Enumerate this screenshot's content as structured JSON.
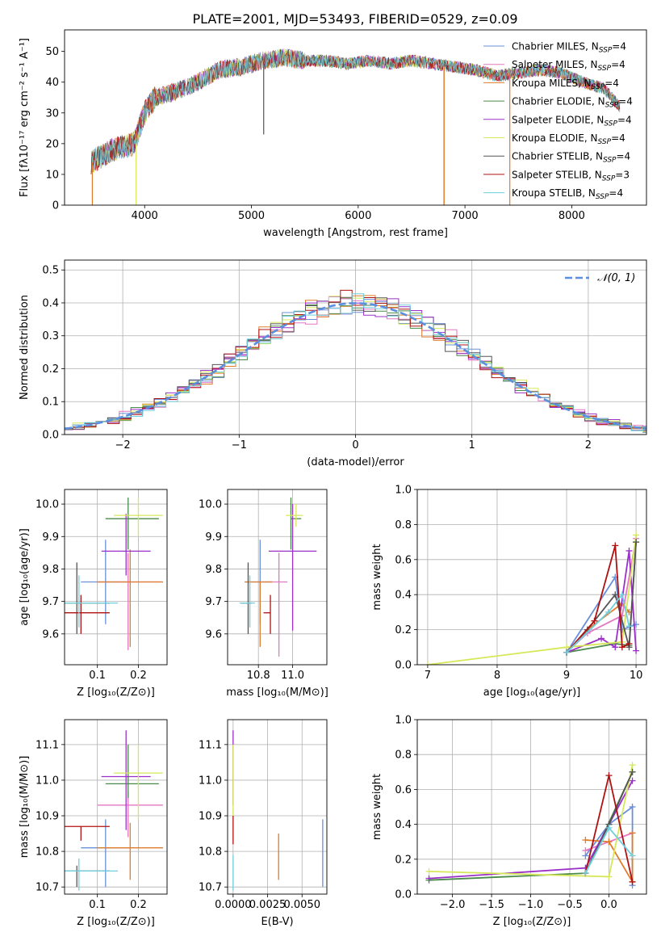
{
  "figure_title": "PLATE=2001, MJD=53493, FIBERID=0529, z=0.09",
  "colors": {
    "chabrier_miles": "#6a8fd8",
    "salpeter_miles": "#e377c2",
    "kroupa_miles": "#e07b2a",
    "chabrier_elodie": "#4a8a4a",
    "salpeter_elodie": "#9b30c8",
    "kroupa_elodie": "#d6e85a",
    "chabrier_stelib": "#555555",
    "salpeter_stelib": "#b01010",
    "kroupa_stelib": "#6fcfdc",
    "normal": "#5b8ede",
    "grid": "#b0b0b0"
  },
  "chart_data": [
    {
      "id": "spectrum",
      "type": "line",
      "title": "PLATE=2001, MJD=53493, FIBERID=0529, z=0.09",
      "xlabel": "wavelength [Angstrom, rest frame]",
      "ylabel": "Flux [fλ10⁻¹⁷ erg cm⁻² s⁻¹ A⁻¹]",
      "xlim": [
        3250,
        8700
      ],
      "ylim": [
        0,
        57
      ],
      "xticks": [
        4000,
        5000,
        6000,
        7000,
        8000
      ],
      "yticks": [
        0,
        10,
        20,
        30,
        40,
        50
      ],
      "grid": false,
      "legend_position": "top-right",
      "series": [
        {
          "name": "Chabrier MILES, N_SSP=4",
          "key": "chabrier_miles"
        },
        {
          "name": "Salpeter MILES, N_SSP=4",
          "key": "salpeter_miles"
        },
        {
          "name": "Kroupa MILES, N_SSP=4",
          "key": "kroupa_miles"
        },
        {
          "name": "Chabrier ELODIE, N_SSP=4",
          "key": "chabrier_elodie"
        },
        {
          "name": "Salpeter ELODIE, N_SSP=4",
          "key": "salpeter_elodie"
        },
        {
          "name": "Kroupa ELODIE, N_SSP=4",
          "key": "kroupa_elodie"
        },
        {
          "name": "Chabrier STELIB, N_SSP=4",
          "key": "chabrier_stelib"
        },
        {
          "name": "Salpeter STELIB, N_SSP=3",
          "key": "salpeter_stelib"
        },
        {
          "name": "Kroupa STELIB, N_SSP=4",
          "key": "kroupa_stelib"
        }
      ],
      "continuum": {
        "x": [
          3500,
          3700,
          3900,
          4000,
          4100,
          4300,
          4500,
          4700,
          4900,
          5100,
          5300,
          5500,
          5700,
          5900,
          6100,
          6300,
          6500,
          6700,
          6900,
          7100,
          7300,
          7500,
          7700,
          7900,
          8100,
          8300,
          8450
        ],
        "y": [
          14,
          18,
          20,
          30,
          35,
          37,
          40,
          44,
          45,
          47,
          48,
          47,
          47,
          46,
          47,
          46,
          47,
          46,
          45,
          44,
          42,
          43,
          44,
          43,
          40,
          38,
          32
        ]
      },
      "spikes": [
        {
          "x": 3510,
          "y_from": 14,
          "y_to": 0,
          "key": "kroupa_miles"
        },
        {
          "x": 3920,
          "y_from": 20,
          "y_to": 0,
          "key": "kroupa_elodie"
        },
        {
          "x": 5115,
          "y_from": 45,
          "y_to": 23,
          "key": "chabrier_stelib"
        },
        {
          "x": 6800,
          "y_from": 45,
          "y_to": 0,
          "key": "kroupa_elodie"
        },
        {
          "x": 6805,
          "y_from": 45,
          "y_to": 0,
          "key": "kroupa_miles"
        },
        {
          "x": 7420,
          "y_from": 43,
          "y_to": 0,
          "key": "kroupa_miles"
        }
      ]
    },
    {
      "id": "residuals",
      "type": "line",
      "xlabel": "(data-model)/error",
      "ylabel": "Normed distribution",
      "xlim": [
        -2.5,
        2.5
      ],
      "ylim": [
        0,
        0.53
      ],
      "xticks": [
        -2,
        -1,
        0,
        1,
        2
      ],
      "yticks": [
        0.0,
        0.1,
        0.2,
        0.3,
        0.4,
        0.5
      ],
      "grid": true,
      "legend_position": "top-right",
      "normal_label": "𝒩(0, 1)"
    },
    {
      "id": "age_vs_Z",
      "type": "scatter",
      "xlabel": "Z [log₁₀(Z/Z⊙)]",
      "ylabel": "age  [log₁₀(age/yr)]",
      "xlim": [
        0.02,
        0.27
      ],
      "ylim": [
        9.505,
        10.045
      ],
      "xticks": [
        0.1,
        0.2
      ],
      "yticks": [
        9.6,
        9.7,
        9.8,
        9.9,
        10.0
      ],
      "grid": true,
      "points": [
        {
          "key": "chabrier_miles",
          "x": 0.12,
          "y": 9.76,
          "xerr": [
            0.06,
            0.18
          ],
          "yerr": [
            9.63,
            9.89
          ]
        },
        {
          "key": "salpeter_miles",
          "x": 0.175,
          "y": 9.76,
          "xerr": [
            0.1,
            0.26
          ],
          "yerr": [
            9.55,
            9.85
          ]
        },
        {
          "key": "kroupa_miles",
          "x": 0.18,
          "y": 9.76,
          "xerr": [
            0.1,
            0.26
          ],
          "yerr": [
            9.56,
            9.86
          ]
        },
        {
          "key": "chabrier_elodie",
          "x": 0.175,
          "y": 9.955,
          "xerr": [
            0.12,
            0.25
          ],
          "yerr": [
            9.86,
            10.02
          ]
        },
        {
          "key": "salpeter_elodie",
          "x": 0.17,
          "y": 9.855,
          "xerr": [
            0.11,
            0.23
          ],
          "yerr": [
            9.78,
            9.97
          ]
        },
        {
          "key": "kroupa_elodie",
          "x": 0.2,
          "y": 9.965,
          "xerr": [
            0.14,
            0.26
          ],
          "yerr": [
            9.9,
            10.02
          ]
        },
        {
          "key": "chabrier_stelib",
          "x": 0.05,
          "y": 9.695,
          "xerr": [
            0.0,
            0.13
          ],
          "yerr": [
            9.6,
            9.82
          ]
        },
        {
          "key": "salpeter_stelib",
          "x": 0.06,
          "y": 9.665,
          "xerr": [
            0.0,
            0.13
          ],
          "yerr": [
            9.6,
            9.72
          ]
        },
        {
          "key": "kroupa_stelib",
          "x": 0.055,
          "y": 9.695,
          "xerr": [
            0.0,
            0.15
          ],
          "yerr": [
            9.62,
            9.78
          ]
        }
      ]
    },
    {
      "id": "age_vs_mass",
      "type": "scatter",
      "xlabel": "mass [log₁₀(M/M⊙)]",
      "ylabel": "",
      "xlim": [
        10.62,
        11.2
      ],
      "ylim": [
        9.505,
        10.045
      ],
      "xticks": [
        10.8,
        11.0
      ],
      "yticks": [
        9.6,
        9.7,
        9.8,
        9.9,
        10.0
      ],
      "grid": true,
      "points": [
        {
          "key": "chabrier_miles",
          "x": 10.81,
          "y": 9.76,
          "xerr": [
            10.72,
            10.88
          ],
          "yerr": [
            9.63,
            9.89
          ]
        },
        {
          "key": "salpeter_miles",
          "x": 10.92,
          "y": 9.76,
          "xerr": [
            10.84,
            10.97
          ],
          "yerr": [
            9.53,
            9.85
          ]
        },
        {
          "key": "kroupa_miles",
          "x": 10.81,
          "y": 9.76,
          "xerr": [
            10.72,
            10.88
          ],
          "yerr": [
            9.56,
            9.76
          ]
        },
        {
          "key": "chabrier_elodie",
          "x": 10.99,
          "y": 9.955,
          "xerr": [
            10.99,
            11.05
          ],
          "yerr": [
            9.86,
            10.02
          ]
        },
        {
          "key": "salpeter_elodie",
          "x": 11.0,
          "y": 9.855,
          "xerr": [
            10.86,
            11.14
          ],
          "yerr": [
            9.61,
            10.0
          ]
        },
        {
          "key": "kroupa_elodie",
          "x": 11.02,
          "y": 9.965,
          "xerr": [
            10.96,
            11.06
          ],
          "yerr": [
            9.93,
            10.0
          ]
        },
        {
          "key": "chabrier_stelib",
          "x": 10.74,
          "y": 9.695,
          "xerr": [
            10.7,
            10.76
          ],
          "yerr": [
            9.6,
            9.82
          ]
        },
        {
          "key": "salpeter_stelib",
          "x": 10.87,
          "y": 9.665,
          "xerr": [
            10.83,
            10.87
          ],
          "yerr": [
            9.6,
            9.72
          ]
        },
        {
          "key": "kroupa_stelib",
          "x": 10.75,
          "y": 9.695,
          "xerr": [
            10.69,
            10.78
          ],
          "yerr": [
            9.62,
            9.78
          ]
        }
      ]
    },
    {
      "id": "weight_vs_age",
      "type": "line",
      "xlabel": "age  [log₁₀(age/yr)]",
      "ylabel": "mass weight",
      "xlim": [
        6.85,
        10.15
      ],
      "ylim": [
        0,
        1
      ],
      "xticks": [
        7,
        8,
        9,
        10
      ],
      "yticks": [
        0.0,
        0.2,
        0.4,
        0.6,
        0.8,
        1.0
      ],
      "grid": true,
      "series": [
        {
          "key": "chabrier_miles",
          "x": [
            9.0,
            9.7,
            9.8,
            10.0
          ],
          "y": [
            0.07,
            0.5,
            0.2,
            0.23
          ]
        },
        {
          "key": "salpeter_miles",
          "x": [
            9.0,
            9.3,
            9.8,
            10.0
          ],
          "y": [
            0.07,
            0.18,
            0.28,
            0.72
          ]
        },
        {
          "key": "kroupa_miles",
          "x": [
            9.0,
            9.3,
            9.8,
            9.9
          ],
          "y": [
            0.07,
            0.2,
            0.35,
            0.3
          ]
        },
        {
          "key": "chabrier_elodie",
          "x": [
            9.0,
            9.7,
            9.9,
            10.0
          ],
          "y": [
            0.07,
            0.12,
            0.11,
            0.7
          ]
        },
        {
          "key": "salpeter_elodie",
          "x": [
            9.0,
            9.5,
            9.7,
            9.9,
            10.0
          ],
          "y": [
            0.07,
            0.15,
            0.1,
            0.65,
            0.08
          ]
        },
        {
          "key": "kroupa_elodie",
          "x": [
            7.0,
            9.0,
            9.8,
            10.0
          ],
          "y": [
            0.0,
            0.1,
            0.13,
            0.74
          ]
        },
        {
          "key": "chabrier_stelib",
          "x": [
            9.0,
            9.3,
            9.7,
            9.9,
            10.0
          ],
          "y": [
            0.07,
            0.2,
            0.4,
            0.1,
            0.7
          ]
        },
        {
          "key": "salpeter_stelib",
          "x": [
            9.0,
            9.4,
            9.7,
            9.8,
            9.9
          ],
          "y": [
            0.07,
            0.25,
            0.68,
            0.1,
            0.12
          ]
        },
        {
          "key": "kroupa_stelib",
          "x": [
            9.0,
            9.6,
            9.8,
            9.9
          ],
          "y": [
            0.07,
            0.3,
            0.4,
            0.22
          ]
        }
      ]
    },
    {
      "id": "mass_vs_Z",
      "type": "scatter",
      "xlabel": "Z [log₁₀(Z/Z⊙)]",
      "ylabel": "mass [log₁₀(M/M⊙)]",
      "xlim": [
        0.02,
        0.27
      ],
      "ylim": [
        10.68,
        11.17
      ],
      "xticks": [
        0.1,
        0.2
      ],
      "yticks": [
        10.7,
        10.8,
        10.9,
        11.0,
        11.1
      ],
      "grid": true,
      "points": [
        {
          "key": "chabrier_miles",
          "x": 0.12,
          "y": 10.81,
          "xerr": [
            0.06,
            0.18
          ],
          "yerr": [
            10.7,
            10.89
          ]
        },
        {
          "key": "salpeter_miles",
          "x": 0.175,
          "y": 10.93,
          "xerr": [
            0.1,
            0.26
          ],
          "yerr": [
            10.84,
            10.97
          ]
        },
        {
          "key": "kroupa_miles",
          "x": 0.18,
          "y": 10.81,
          "xerr": [
            0.1,
            0.26
          ],
          "yerr": [
            10.72,
            10.88
          ]
        },
        {
          "key": "chabrier_elodie",
          "x": 0.175,
          "y": 10.99,
          "xerr": [
            0.12,
            0.25
          ],
          "yerr": [
            10.95,
            11.1
          ]
        },
        {
          "key": "salpeter_elodie",
          "x": 0.17,
          "y": 11.01,
          "xerr": [
            0.11,
            0.23
          ],
          "yerr": [
            10.86,
            11.14
          ]
        },
        {
          "key": "kroupa_elodie",
          "x": 0.2,
          "y": 11.02,
          "xerr": [
            0.14,
            0.26
          ],
          "yerr": [
            10.89,
            11.1
          ]
        },
        {
          "key": "chabrier_stelib",
          "x": 0.05,
          "y": 10.745,
          "xerr": [
            0.0,
            0.13
          ],
          "yerr": [
            10.7,
            10.76
          ]
        },
        {
          "key": "salpeter_stelib",
          "x": 0.06,
          "y": 10.87,
          "xerr": [
            0.0,
            0.13
          ],
          "yerr": [
            10.83,
            10.87
          ]
        },
        {
          "key": "kroupa_stelib",
          "x": 0.055,
          "y": 10.745,
          "xerr": [
            0.0,
            0.15
          ],
          "yerr": [
            10.69,
            10.78
          ]
        }
      ]
    },
    {
      "id": "mass_vs_ebv",
      "type": "scatter",
      "xlabel": "E(B-V)",
      "ylabel": "",
      "xlim": [
        -0.0004,
        0.0068
      ],
      "ylim": [
        10.68,
        11.17
      ],
      "xticks": [
        0.0,
        0.0025,
        0.005
      ],
      "xticklabels": [
        "0.0000",
        "0.0025",
        "0.0050"
      ],
      "yticks": [
        10.7,
        10.8,
        10.9,
        11.0,
        11.1
      ],
      "grid": true,
      "points": [
        {
          "key": "chabrier_miles",
          "x": 0.0065,
          "y": 10.81,
          "yerr": [
            10.7,
            10.89
          ]
        },
        {
          "key": "kroupa_miles",
          "x": 0.0033,
          "y": 10.81,
          "yerr": [
            10.72,
            10.85
          ]
        },
        {
          "key": "salpeter_elodie",
          "x": 0.0,
          "y": 11.05,
          "yerr": [
            10.93,
            11.14
          ]
        },
        {
          "key": "kroupa_elodie",
          "x": 0.0,
          "y": 11.0,
          "yerr": [
            10.9,
            11.1
          ]
        },
        {
          "key": "salpeter_stelib",
          "x": 0.0,
          "y": 10.87,
          "yerr": [
            10.82,
            10.9
          ]
        },
        {
          "key": "kroupa_stelib",
          "x": 0.0,
          "y": 10.745,
          "yerr": [
            10.69,
            10.79
          ]
        }
      ]
    },
    {
      "id": "weight_vs_Z",
      "type": "line",
      "xlabel": "Z [log₁₀(Z/Z⊙)]",
      "ylabel": "mass weight",
      "xlim": [
        -2.45,
        0.48
      ],
      "ylim": [
        0,
        1
      ],
      "xticks": [
        -2.0,
        -1.5,
        -1.0,
        -0.5,
        0.0
      ],
      "yticks": [
        0.0,
        0.2,
        0.4,
        0.6,
        0.8,
        1.0
      ],
      "grid": true,
      "series": [
        {
          "key": "chabrier_miles",
          "x": [
            -0.3,
            0.0,
            0.3,
            0.3
          ],
          "y": [
            0.22,
            0.4,
            0.5,
            0.05
          ]
        },
        {
          "key": "salpeter_miles",
          "x": [
            -0.3,
            0.0,
            0.3
          ],
          "y": [
            0.25,
            0.3,
            0.35
          ]
        },
        {
          "key": "kroupa_miles",
          "x": [
            -0.3,
            0.0,
            0.3,
            0.3
          ],
          "y": [
            0.31,
            0.3,
            0.07,
            0.35
          ]
        },
        {
          "key": "chabrier_elodie",
          "x": [
            -2.3,
            -0.3,
            0.3
          ],
          "y": [
            0.08,
            0.12,
            0.7
          ]
        },
        {
          "key": "salpeter_elodie",
          "x": [
            -2.3,
            -0.3,
            0.3
          ],
          "y": [
            0.09,
            0.15,
            0.65
          ]
        },
        {
          "key": "kroupa_elodie",
          "x": [
            -2.3,
            0.0,
            0.3
          ],
          "y": [
            0.13,
            0.1,
            0.74
          ]
        },
        {
          "key": "chabrier_stelib",
          "x": [
            -0.3,
            0.0,
            0.3
          ],
          "y": [
            0.12,
            0.4,
            0.7
          ]
        },
        {
          "key": "salpeter_stelib",
          "x": [
            -0.3,
            0.0,
            0.3
          ],
          "y": [
            0.12,
            0.68,
            0.07
          ]
        },
        {
          "key": "kroupa_stelib",
          "x": [
            -0.3,
            0.0,
            0.3
          ],
          "y": [
            0.12,
            0.38,
            0.22
          ]
        }
      ]
    }
  ]
}
